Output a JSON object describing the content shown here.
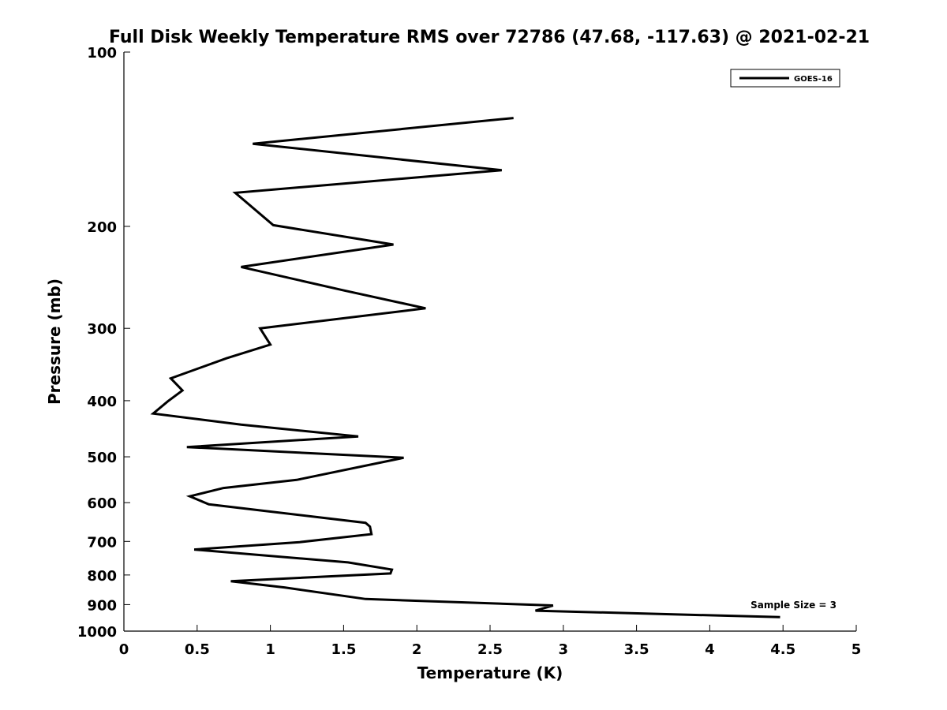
{
  "chart_data": {
    "type": "line",
    "title": "Full Disk Weekly Temperature RMS over 72786 (47.68, -117.63) @ 2021-02-21",
    "xlabel": "Temperature (K)",
    "ylabel": "Pressure (mb)",
    "xlim": [
      0,
      5
    ],
    "ylim": [
      100,
      1000
    ],
    "yscale": "log",
    "y_reversed": true,
    "x_ticks": [
      "0",
      "0.5",
      "1",
      "1.5",
      "2",
      "2.5",
      "3",
      "3.5",
      "4",
      "4.5",
      "5"
    ],
    "y_ticks": [
      "100",
      "200",
      "300",
      "400",
      "500",
      "600",
      "700",
      "800",
      "900",
      "1000"
    ],
    "grid": false,
    "legend_position": "top-right",
    "series": [
      {
        "name": "GOES-16",
        "color": "#000000",
        "points": [
          {
            "temperature": 2.66,
            "pressure": 130
          },
          {
            "temperature": 0.88,
            "pressure": 144
          },
          {
            "temperature": 2.58,
            "pressure": 160
          },
          {
            "temperature": 0.76,
            "pressure": 175
          },
          {
            "temperature": 1.02,
            "pressure": 199
          },
          {
            "temperature": 1.84,
            "pressure": 215
          },
          {
            "temperature": 0.8,
            "pressure": 235
          },
          {
            "temperature": 1.5,
            "pressure": 258
          },
          {
            "temperature": 2.06,
            "pressure": 277
          },
          {
            "temperature": 0.93,
            "pressure": 300
          },
          {
            "temperature": 1.0,
            "pressure": 320
          },
          {
            "temperature": 0.7,
            "pressure": 338
          },
          {
            "temperature": 0.32,
            "pressure": 366
          },
          {
            "temperature": 0.4,
            "pressure": 384
          },
          {
            "temperature": 0.3,
            "pressure": 401
          },
          {
            "temperature": 0.2,
            "pressure": 421
          },
          {
            "temperature": 0.8,
            "pressure": 440
          },
          {
            "temperature": 1.6,
            "pressure": 461
          },
          {
            "temperature": 0.43,
            "pressure": 481
          },
          {
            "temperature": 1.91,
            "pressure": 502
          },
          {
            "temperature": 1.18,
            "pressure": 548
          },
          {
            "temperature": 0.68,
            "pressure": 566
          },
          {
            "temperature": 0.45,
            "pressure": 585
          },
          {
            "temperature": 0.58,
            "pressure": 604
          },
          {
            "temperature": 1.65,
            "pressure": 650
          },
          {
            "temperature": 1.68,
            "pressure": 660
          },
          {
            "temperature": 1.69,
            "pressure": 680
          },
          {
            "temperature": 1.2,
            "pressure": 702
          },
          {
            "temperature": 0.48,
            "pressure": 723
          },
          {
            "temperature": 1.53,
            "pressure": 761
          },
          {
            "temperature": 1.83,
            "pressure": 783
          },
          {
            "temperature": 1.82,
            "pressure": 795
          },
          {
            "temperature": 0.73,
            "pressure": 820
          },
          {
            "temperature": 1.1,
            "pressure": 841
          },
          {
            "temperature": 1.65,
            "pressure": 880
          },
          {
            "temperature": 2.93,
            "pressure": 903
          },
          {
            "temperature": 2.81,
            "pressure": 922
          },
          {
            "temperature": 4.48,
            "pressure": 946
          }
        ]
      }
    ],
    "annotations": [
      "Sample Size = 3"
    ]
  }
}
